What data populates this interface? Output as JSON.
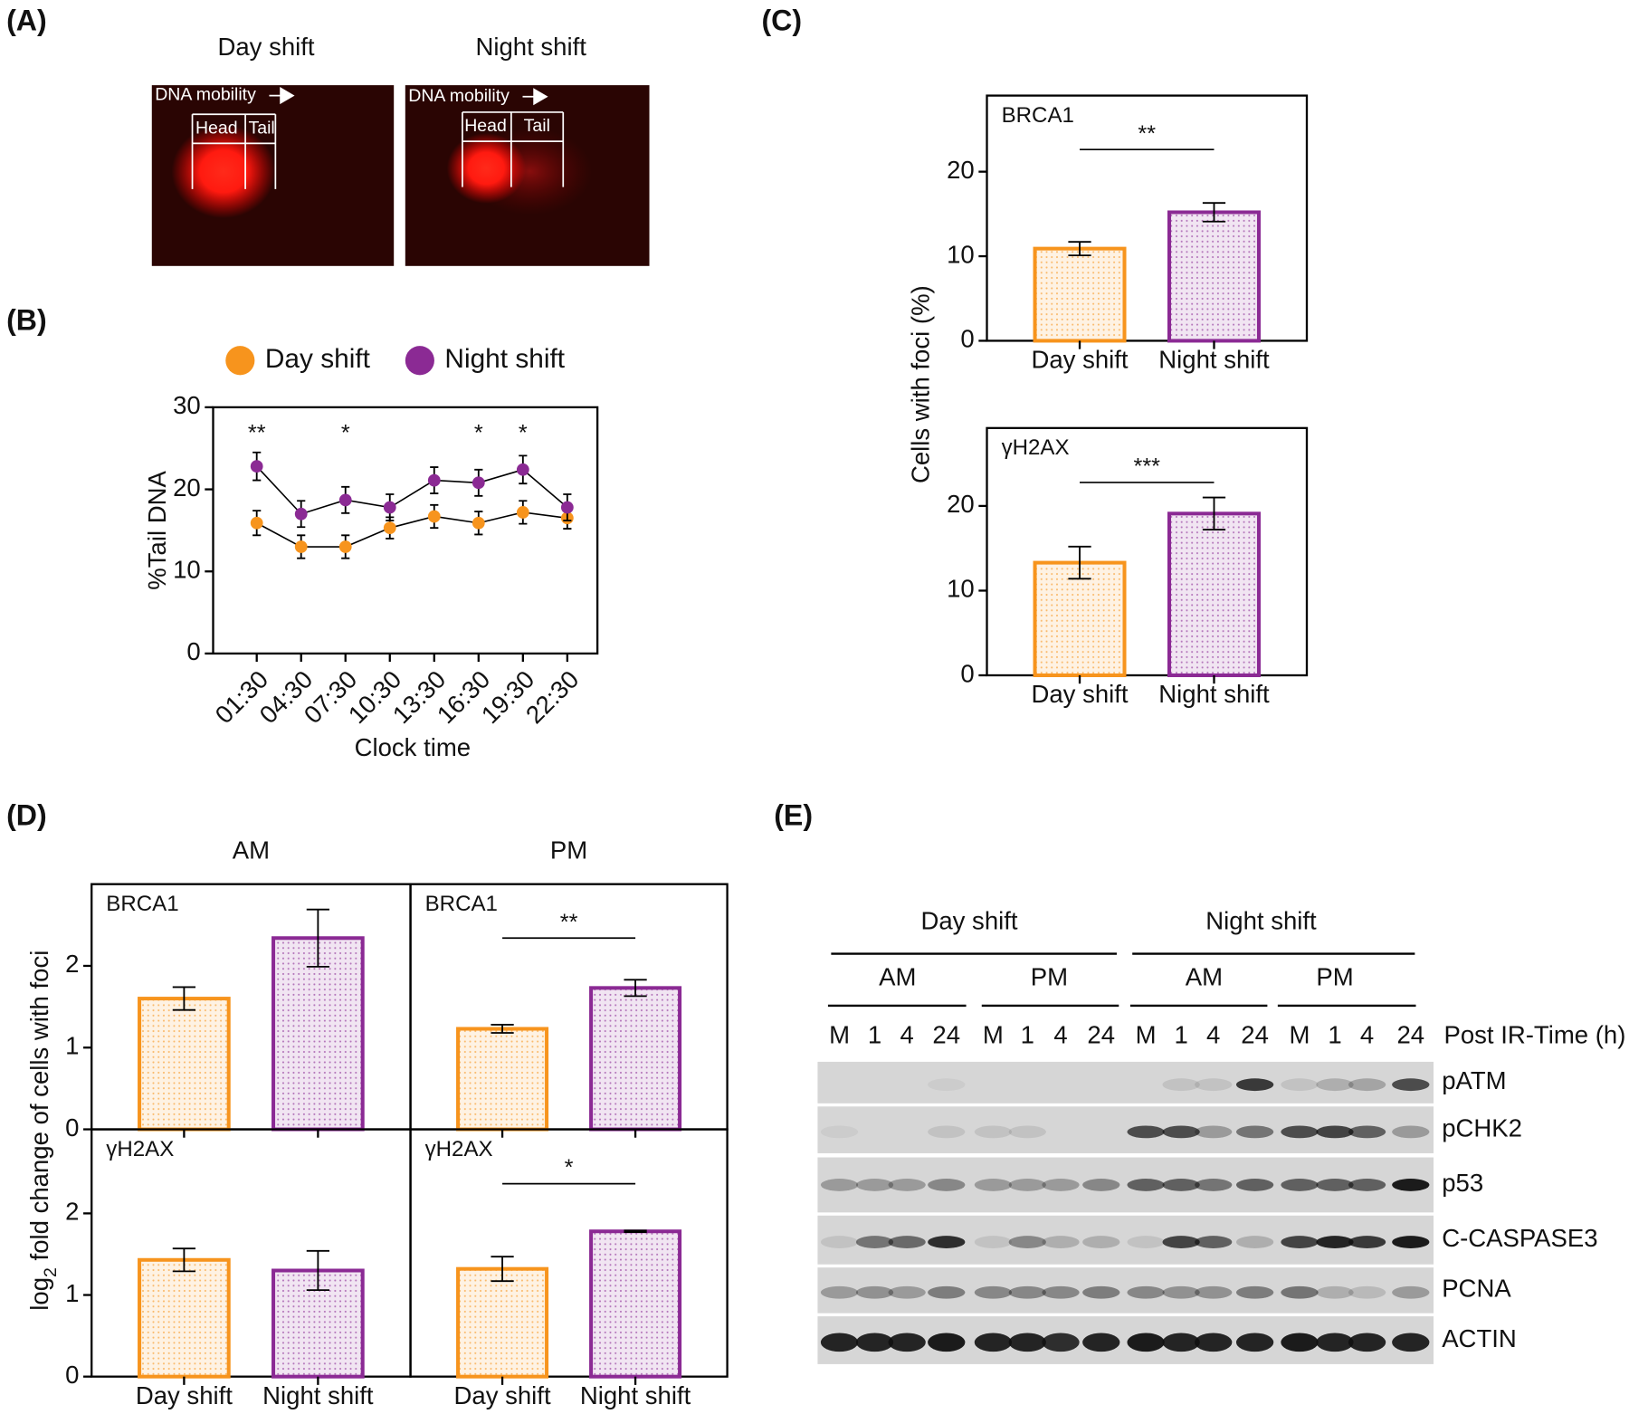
{
  "chart_data": [
    {
      "type": "line",
      "xlabel": "Clock time",
      "ylabel": "%Tail DNA",
      "categories": [
        "01:30",
        "04:30",
        "07:30",
        "10:30",
        "13:30",
        "16:30",
        "19:30",
        "22:30"
      ],
      "series": [
        {
          "name": "Day shift",
          "color": "#f7941d",
          "values": [
            15.9,
            13.0,
            13.0,
            15.3,
            16.7,
            15.9,
            17.2,
            16.5
          ],
          "errors": [
            1.5,
            1.4,
            1.4,
            1.3,
            1.4,
            1.4,
            1.4,
            1.3
          ]
        },
        {
          "name": "Night shift",
          "color": "#8b2a94",
          "values": [
            22.8,
            17.0,
            18.7,
            17.8,
            21.1,
            20.8,
            22.4,
            17.8
          ],
          "errors": [
            1.7,
            1.6,
            1.6,
            1.6,
            1.6,
            1.6,
            1.7,
            1.6
          ]
        }
      ],
      "annotations": [
        "**",
        null,
        "*",
        null,
        null,
        "*",
        "*",
        null
      ],
      "ylim": [
        0,
        30
      ],
      "yticks": [
        0,
        10,
        20,
        30
      ],
      "legend": "top"
    },
    {
      "type": "bar",
      "title": "BRCA1",
      "ylabel": "Cells with foci (%)",
      "categories": [
        "Day shift",
        "Night shift"
      ],
      "values": [
        10.9,
        15.2
      ],
      "errors": [
        0.8,
        1.1
      ],
      "colors": [
        "#f7941d",
        "#8b2a94"
      ],
      "ylim": [
        0,
        29
      ],
      "yticks": [
        0,
        10,
        20
      ],
      "significance": "**"
    },
    {
      "type": "bar",
      "title": "γH2AX",
      "categories": [
        "Day shift",
        "Night shift"
      ],
      "values": [
        13.3,
        19.1
      ],
      "errors": [
        1.9,
        1.9
      ],
      "colors": [
        "#f7941d",
        "#8b2a94"
      ],
      "ylim": [
        0,
        29.2
      ],
      "yticks": [
        0,
        10,
        20
      ],
      "significance": "***"
    },
    {
      "type": "bar",
      "title": "BRCA1",
      "column_title": "AM",
      "ylabel": [
        "log",
        "2",
        " fold change of cells with foci"
      ],
      "categories": [
        null,
        null
      ],
      "values": [
        1.6,
        2.34
      ],
      "errors": [
        0.14,
        0.35
      ],
      "colors": [
        "#f7941d",
        "#8b2a94"
      ],
      "ylim": [
        0,
        3
      ],
      "yticks": [
        0,
        1,
        2
      ]
    },
    {
      "type": "bar",
      "title": "BRCA1",
      "column_title": "PM",
      "categories": [
        null,
        null
      ],
      "values": [
        1.23,
        1.73
      ],
      "errors": [
        0.05,
        0.1
      ],
      "colors": [
        "#f7941d",
        "#8b2a94"
      ],
      "ylim": [
        0,
        3
      ],
      "significance": "**"
    },
    {
      "type": "bar",
      "title": "γH2AX",
      "categories": [
        "Day shift",
        "Night shift"
      ],
      "values": [
        1.43,
        1.3
      ],
      "errors": [
        0.14,
        0.24
      ],
      "colors": [
        "#f7941d",
        "#8b2a94"
      ],
      "ylim": [
        0,
        3.03
      ],
      "yticks": [
        0,
        1,
        2
      ]
    },
    {
      "type": "bar",
      "title": "γH2AX",
      "categories": [
        "Day shift",
        "Night shift"
      ],
      "values": [
        1.32,
        1.78
      ],
      "errors": [
        0.15,
        0.01
      ],
      "colors": [
        "#f7941d",
        "#8b2a94"
      ],
      "ylim": [
        0,
        3.03
      ],
      "significance": "*"
    }
  ],
  "figure": {
    "panel_labels": [
      "(A)",
      "(B)",
      "(C)",
      "(D)",
      "(E)"
    ],
    "comet": {
      "titles": [
        "Day shift",
        "Night shift"
      ],
      "mobility": "DNA mobility",
      "head": "Head",
      "tail": "Tail"
    },
    "blot": {
      "groups": [
        "Day shift",
        "Night shift"
      ],
      "times": [
        "AM",
        "PM",
        "AM",
        "PM"
      ],
      "lanes": [
        "M",
        "1",
        "4",
        "24",
        "M",
        "1",
        "4",
        "24",
        "M",
        "1",
        "4",
        "24",
        "M",
        "1",
        "4",
        "24"
      ],
      "lane_title": "Post IR-Time (h)",
      "proteins": [
        "pATM",
        "pCHK2",
        "p53",
        "C-CASPASE3",
        "PCNA",
        "ACTIN"
      ]
    }
  }
}
